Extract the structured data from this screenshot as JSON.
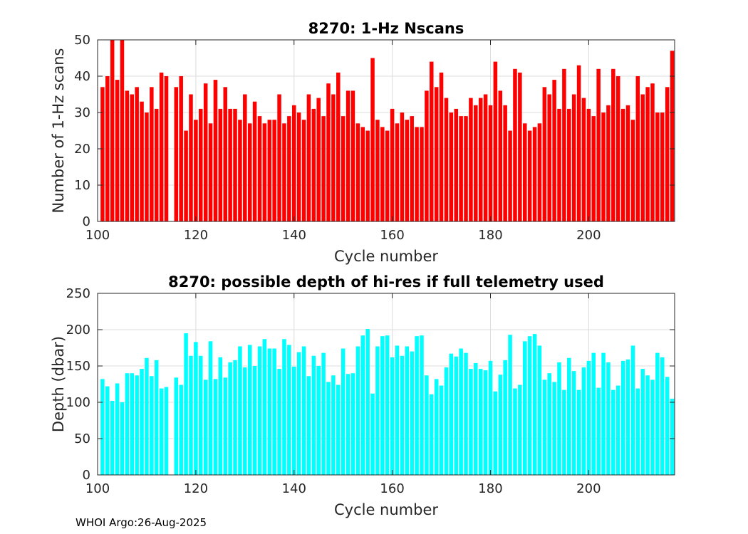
{
  "footer": "WHOI Argo:26-Aug-2025",
  "chart_data": [
    {
      "type": "bar",
      "title": "8270: 1-Hz Nscans",
      "xlabel": "Cycle number",
      "ylabel": "Number of 1-Hz scans",
      "xlim": [
        100,
        217.5
      ],
      "ylim": [
        0,
        50
      ],
      "xticks": [
        100,
        120,
        140,
        160,
        180,
        200
      ],
      "yticks": [
        0,
        10,
        20,
        30,
        40,
        50
      ],
      "grid": true,
      "color": "#ff0000",
      "x": [
        101,
        102,
        103,
        104,
        105,
        106,
        107,
        108,
        109,
        110,
        111,
        112,
        113,
        114,
        115,
        116,
        117,
        118,
        119,
        120,
        121,
        122,
        123,
        124,
        125,
        126,
        127,
        128,
        129,
        130,
        131,
        132,
        133,
        134,
        135,
        136,
        137,
        138,
        139,
        140,
        141,
        142,
        143,
        144,
        145,
        146,
        147,
        148,
        149,
        150,
        151,
        152,
        153,
        154,
        155,
        156,
        157,
        158,
        159,
        160,
        161,
        162,
        163,
        164,
        165,
        166,
        167,
        168,
        169,
        170,
        171,
        172,
        173,
        174,
        175,
        176,
        177,
        178,
        179,
        180,
        181,
        182,
        183,
        184,
        185,
        186,
        187,
        188,
        189,
        190,
        191,
        192,
        193,
        194,
        195,
        196,
        197,
        198,
        199,
        200,
        201,
        202,
        203,
        204,
        205,
        206,
        207,
        208,
        209,
        210,
        211,
        212,
        213,
        214,
        215,
        216,
        217
      ],
      "values": [
        37,
        40,
        50,
        39,
        50,
        36,
        35,
        37,
        33,
        30,
        37,
        31,
        41,
        40,
        0,
        37,
        40,
        25,
        35,
        28,
        31,
        38,
        27,
        39,
        31,
        37,
        31,
        31,
        28,
        35,
        27,
        33,
        29,
        27,
        28,
        28,
        35,
        27,
        29,
        32,
        30,
        28,
        35,
        31,
        34,
        29,
        38,
        35,
        41,
        29,
        36,
        36,
        27,
        26,
        25,
        45,
        28,
        26,
        25,
        31,
        27,
        30,
        28,
        29,
        26,
        26,
        36,
        44,
        37,
        41,
        34,
        30,
        31,
        29,
        29,
        34,
        32,
        34,
        35,
        32,
        44,
        36,
        32,
        25,
        42,
        41,
        27,
        25,
        26,
        27,
        37,
        35,
        39,
        31,
        42,
        31,
        35,
        43,
        34,
        31,
        29,
        42,
        30,
        32,
        42,
        40,
        31,
        32,
        28,
        40,
        35,
        37,
        38,
        30,
        30,
        37,
        47
      ]
    },
    {
      "type": "bar",
      "title": "8270: possible depth of hi-res if full telemetry used",
      "xlabel": "Cycle number",
      "ylabel": "Depth (dbar)",
      "xlim": [
        100,
        217.5
      ],
      "ylim": [
        0,
        250
      ],
      "xticks": [
        100,
        120,
        140,
        160,
        180,
        200
      ],
      "yticks": [
        0,
        50,
        100,
        150,
        200,
        250
      ],
      "grid": true,
      "color": "#00ffff",
      "x": [
        101,
        102,
        103,
        104,
        105,
        106,
        107,
        108,
        109,
        110,
        111,
        112,
        113,
        114,
        115,
        116,
        117,
        118,
        119,
        120,
        121,
        122,
        123,
        124,
        125,
        126,
        127,
        128,
        129,
        130,
        131,
        132,
        133,
        134,
        135,
        136,
        137,
        138,
        139,
        140,
        141,
        142,
        143,
        144,
        145,
        146,
        147,
        148,
        149,
        150,
        151,
        152,
        153,
        154,
        155,
        156,
        157,
        158,
        159,
        160,
        161,
        162,
        163,
        164,
        165,
        166,
        167,
        168,
        169,
        170,
        171,
        172,
        173,
        174,
        175,
        176,
        177,
        178,
        179,
        180,
        181,
        182,
        183,
        184,
        185,
        186,
        187,
        188,
        189,
        190,
        191,
        192,
        193,
        194,
        195,
        196,
        197,
        198,
        199,
        200,
        201,
        202,
        203,
        204,
        205,
        206,
        207,
        208,
        209,
        210,
        211,
        212,
        213,
        214,
        215,
        216,
        217
      ],
      "values": [
        132,
        122,
        102,
        126,
        100,
        140,
        140,
        137,
        146,
        161,
        136,
        158,
        119,
        121,
        0,
        134,
        124,
        195,
        164,
        183,
        164,
        131,
        184,
        132,
        162,
        134,
        155,
        158,
        177,
        148,
        179,
        150,
        177,
        187,
        174,
        174,
        146,
        187,
        179,
        149,
        169,
        177,
        136,
        164,
        150,
        168,
        128,
        137,
        124,
        174,
        139,
        140,
        177,
        192,
        201,
        112,
        177,
        191,
        192,
        162,
        178,
        164,
        177,
        170,
        191,
        192,
        137,
        111,
        132,
        123,
        148,
        167,
        163,
        174,
        168,
        146,
        154,
        146,
        144,
        157,
        115,
        138,
        158,
        193,
        119,
        124,
        184,
        191,
        194,
        178,
        131,
        140,
        128,
        155,
        117,
        161,
        143,
        117,
        148,
        157,
        168,
        120,
        168,
        155,
        117,
        123,
        157,
        159,
        178,
        119,
        146,
        137,
        131,
        168,
        162,
        135,
        105
      ]
    }
  ]
}
